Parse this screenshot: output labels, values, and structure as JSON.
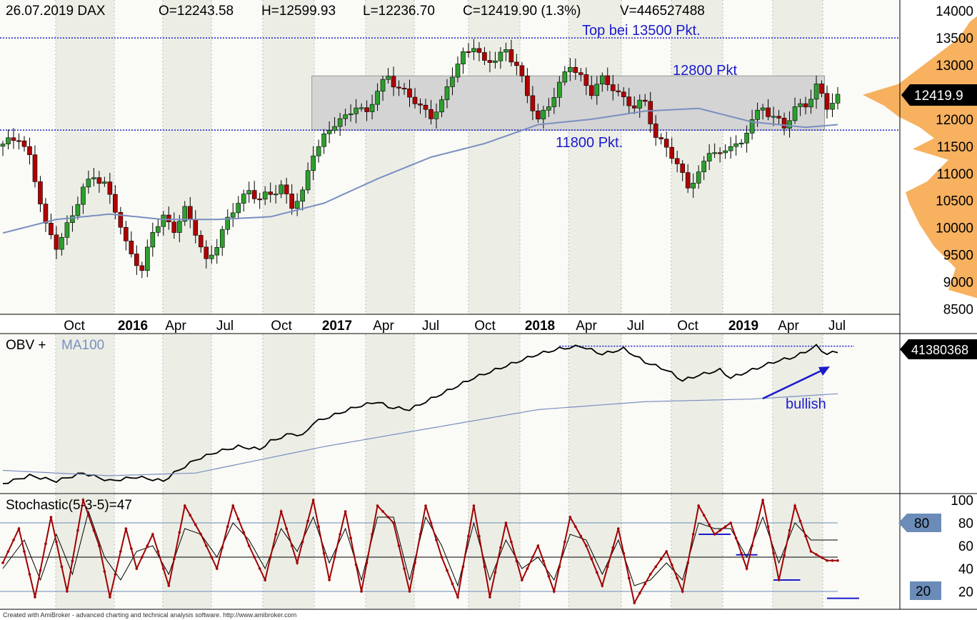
{
  "colors": {
    "up": "#2e9e2e",
    "down": "#b00000",
    "wick": "#000000",
    "ma": "#7a8fc0",
    "obv": "#000000",
    "stoch_k": "#a00000",
    "stoch_d": "#000000",
    "annot": "#1a1acc",
    "zone": "#d4d4d4",
    "profile": "#f6a94e",
    "band_alt": "#eceee6",
    "band": "#fafaf6"
  },
  "footer": {
    "credit": "Created with AmiBroker - advanced charting and technical analysis software. http://www.amibroker.com"
  },
  "chart_data": [
    {
      "type": "candlestick",
      "title": "26.07.2019 DAX",
      "ohlcv": {
        "o_label": "O=12243.58",
        "h_label": "H=12599.93",
        "l_label": "L=12236.70",
        "c_label": "C=12419.90 (1.3%)",
        "v_label": "V=446527488"
      },
      "last_value_label": "12419.9",
      "last_value": 12419.9,
      "ylim": [
        8400,
        14200
      ],
      "yticks": [
        8500,
        9000,
        9500,
        10000,
        10500,
        11000,
        11500,
        12000,
        12500,
        13000,
        13500,
        14000
      ],
      "x_tick_labels": [
        {
          "text": "Oct",
          "bold": false
        },
        {
          "text": "2016",
          "bold": true
        },
        {
          "text": "Apr",
          "bold": false
        },
        {
          "text": "Jul",
          "bold": false
        },
        {
          "text": "Oct",
          "bold": false
        },
        {
          "text": "2017",
          "bold": true
        },
        {
          "text": "Apr",
          "bold": false
        },
        {
          "text": "Jul",
          "bold": false
        },
        {
          "text": "Oct",
          "bold": false
        },
        {
          "text": "2018",
          "bold": true
        },
        {
          "text": "Apr",
          "bold": false
        },
        {
          "text": "Jul",
          "bold": false
        },
        {
          "text": "Oct",
          "bold": false
        },
        {
          "text": "2019",
          "bold": true
        },
        {
          "text": "Apr",
          "bold": false
        },
        {
          "text": "Jul",
          "bold": false
        }
      ],
      "annotations": [
        {
          "text": "Top bei 13500 Pkt.",
          "level": 13500
        },
        {
          "text": "12800 Pkt",
          "level": 12800
        },
        {
          "text": "11800 Pkt.",
          "level": 11800
        }
      ],
      "zone": {
        "low": 11800,
        "high": 12800
      },
      "ma_points": [
        [
          0,
          9900
        ],
        [
          10,
          10150
        ],
        [
          20,
          10250
        ],
        [
          30,
          10150
        ],
        [
          40,
          10150
        ],
        [
          50,
          10200
        ],
        [
          60,
          10450
        ],
        [
          70,
          10900
        ],
        [
          80,
          11300
        ],
        [
          90,
          11550
        ],
        [
          100,
          11900
        ],
        [
          110,
          12000
        ],
        [
          120,
          12150
        ],
        [
          130,
          12200
        ],
        [
          140,
          11950
        ],
        [
          150,
          11850
        ],
        [
          156,
          11900
        ]
      ],
      "close_points": [
        [
          0,
          11500
        ],
        [
          3,
          11700
        ],
        [
          5,
          11300
        ],
        [
          8,
          10000
        ],
        [
          10,
          9700
        ],
        [
          13,
          10200
        ],
        [
          15,
          10700
        ],
        [
          17,
          11000
        ],
        [
          19,
          10800
        ],
        [
          21,
          10300
        ],
        [
          23,
          9700
        ],
        [
          25,
          9400
        ],
        [
          26,
          9200
        ],
        [
          28,
          9900
        ],
        [
          30,
          10200
        ],
        [
          32,
          10000
        ],
        [
          34,
          10300
        ],
        [
          36,
          9900
        ],
        [
          38,
          9400
        ],
        [
          40,
          9700
        ],
        [
          42,
          10100
        ],
        [
          44,
          10500
        ],
        [
          46,
          10700
        ],
        [
          48,
          10500
        ],
        [
          50,
          10600
        ],
        [
          52,
          10800
        ],
        [
          54,
          10400
        ],
        [
          56,
          10600
        ],
        [
          58,
          11400
        ],
        [
          60,
          11700
        ],
        [
          62,
          11900
        ],
        [
          64,
          12000
        ],
        [
          66,
          12300
        ],
        [
          68,
          12100
        ],
        [
          70,
          12500
        ],
        [
          72,
          12800
        ],
        [
          74,
          12600
        ],
        [
          76,
          12400
        ],
        [
          78,
          12200
        ],
        [
          80,
          12100
        ],
        [
          82,
          12300
        ],
        [
          84,
          12800
        ],
        [
          86,
          13200
        ],
        [
          88,
          13400
        ],
        [
          90,
          13000
        ],
        [
          92,
          13100
        ],
        [
          94,
          13300
        ],
        [
          96,
          13000
        ],
        [
          98,
          12400
        ],
        [
          100,
          12000
        ],
        [
          102,
          12300
        ],
        [
          104,
          12600
        ],
        [
          106,
          13000
        ],
        [
          108,
          12800
        ],
        [
          110,
          12500
        ],
        [
          112,
          12700
        ],
        [
          114,
          12600
        ],
        [
          116,
          12400
        ],
        [
          118,
          12200
        ],
        [
          120,
          12300
        ],
        [
          122,
          11700
        ],
        [
          124,
          11500
        ],
        [
          126,
          11100
        ],
        [
          128,
          10800
        ],
        [
          130,
          11000
        ],
        [
          132,
          11400
        ],
        [
          134,
          11300
        ],
        [
          136,
          11600
        ],
        [
          138,
          11500
        ],
        [
          140,
          12000
        ],
        [
          142,
          12200
        ],
        [
          144,
          12100
        ],
        [
          146,
          11800
        ],
        [
          148,
          12200
        ],
        [
          150,
          12300
        ],
        [
          152,
          12600
        ],
        [
          154,
          12200
        ],
        [
          156,
          12420
        ]
      ]
    },
    {
      "type": "line",
      "title": "OBV + ",
      "ma_title": "MA100",
      "last_value_label": "41380368",
      "annotations": [
        {
          "text": "bullish"
        }
      ],
      "obv_points": [
        [
          0,
          0.68
        ],
        [
          5,
          0.62
        ],
        [
          10,
          0.66
        ],
        [
          15,
          0.6
        ],
        [
          20,
          0.66
        ],
        [
          25,
          0.63
        ],
        [
          30,
          0.66
        ],
        [
          32,
          0.6
        ],
        [
          36,
          0.5
        ],
        [
          40,
          0.44
        ],
        [
          44,
          0.4
        ],
        [
          48,
          0.42
        ],
        [
          50,
          0.36
        ],
        [
          54,
          0.3
        ],
        [
          56,
          0.32
        ],
        [
          58,
          0.22
        ],
        [
          62,
          0.16
        ],
        [
          66,
          0.1
        ],
        [
          70,
          0.06
        ],
        [
          72,
          0.1
        ],
        [
          76,
          0.12
        ],
        [
          80,
          0.04
        ],
        [
          84,
          -0.04
        ],
        [
          88,
          -0.12
        ],
        [
          92,
          -0.18
        ],
        [
          96,
          -0.24
        ],
        [
          100,
          -0.3
        ],
        [
          104,
          -0.34
        ],
        [
          108,
          -0.36
        ],
        [
          112,
          -0.3
        ],
        [
          116,
          -0.34
        ],
        [
          120,
          -0.24
        ],
        [
          124,
          -0.18
        ],
        [
          127,
          -0.1
        ],
        [
          130,
          -0.14
        ],
        [
          134,
          -0.18
        ],
        [
          136,
          -0.12
        ],
        [
          140,
          -0.18
        ],
        [
          144,
          -0.24
        ],
        [
          148,
          -0.28
        ],
        [
          152,
          -0.36
        ],
        [
          154,
          -0.3
        ],
        [
          156,
          -0.32
        ]
      ],
      "ma_points": [
        [
          0,
          0.58
        ],
        [
          20,
          0.62
        ],
        [
          36,
          0.6
        ],
        [
          60,
          0.4
        ],
        [
          80,
          0.26
        ],
        [
          100,
          0.12
        ],
        [
          120,
          0.06
        ],
        [
          140,
          0.04
        ],
        [
          156,
          0.0
        ]
      ],
      "ylim": [
        -0.45,
        0.75
      ]
    },
    {
      "type": "line",
      "title": "Stochastic(5-3-5)=47",
      "ylim": [
        0,
        100
      ],
      "yticks": [
        20,
        40,
        60,
        80,
        100
      ],
      "levels": [
        {
          "value": 80,
          "label": "80"
        },
        {
          "value": 20,
          "label": "20"
        }
      ],
      "k_points": [
        [
          0,
          45
        ],
        [
          3,
          75
        ],
        [
          6,
          15
        ],
        [
          9,
          85
        ],
        [
          12,
          20
        ],
        [
          15,
          100
        ],
        [
          18,
          60
        ],
        [
          20,
          15
        ],
        [
          23,
          75
        ],
        [
          25,
          40
        ],
        [
          28,
          70
        ],
        [
          31,
          25
        ],
        [
          34,
          95
        ],
        [
          37,
          70
        ],
        [
          40,
          40
        ],
        [
          43,
          95
        ],
        [
          46,
          60
        ],
        [
          49,
          30
        ],
        [
          52,
          90
        ],
        [
          55,
          45
        ],
        [
          58,
          100
        ],
        [
          61,
          30
        ],
        [
          64,
          90
        ],
        [
          67,
          20
        ],
        [
          70,
          95
        ],
        [
          73,
          80
        ],
        [
          76,
          20
        ],
        [
          79,
          95
        ],
        [
          82,
          50
        ],
        [
          85,
          15
        ],
        [
          88,
          95
        ],
        [
          91,
          15
        ],
        [
          94,
          80
        ],
        [
          97,
          30
        ],
        [
          100,
          60
        ],
        [
          103,
          20
        ],
        [
          106,
          85
        ],
        [
          109,
          60
        ],
        [
          112,
          25
        ],
        [
          115,
          75
        ],
        [
          118,
          10
        ],
        [
          121,
          35
        ],
        [
          124,
          55
        ],
        [
          127,
          20
        ],
        [
          130,
          95
        ],
        [
          133,
          70
        ],
        [
          136,
          80
        ],
        [
          139,
          40
        ],
        [
          142,
          100
        ],
        [
          145,
          30
        ],
        [
          148,
          95
        ],
        [
          151,
          55
        ],
        [
          154,
          47
        ]
      ],
      "d_points": [
        [
          0,
          40
        ],
        [
          4,
          65
        ],
        [
          7,
          30
        ],
        [
          10,
          70
        ],
        [
          13,
          35
        ],
        [
          16,
          90
        ],
        [
          19,
          50
        ],
        [
          22,
          30
        ],
        [
          25,
          55
        ],
        [
          28,
          60
        ],
        [
          31,
          35
        ],
        [
          34,
          75
        ],
        [
          37,
          70
        ],
        [
          40,
          50
        ],
        [
          43,
          80
        ],
        [
          46,
          65
        ],
        [
          49,
          40
        ],
        [
          52,
          75
        ],
        [
          55,
          55
        ],
        [
          58,
          85
        ],
        [
          61,
          45
        ],
        [
          64,
          75
        ],
        [
          67,
          30
        ],
        [
          70,
          85
        ],
        [
          73,
          85
        ],
        [
          76,
          30
        ],
        [
          79,
          85
        ],
        [
          82,
          60
        ],
        [
          85,
          25
        ],
        [
          88,
          80
        ],
        [
          91,
          30
        ],
        [
          94,
          65
        ],
        [
          97,
          40
        ],
        [
          100,
          50
        ],
        [
          103,
          30
        ],
        [
          106,
          70
        ],
        [
          109,
          65
        ],
        [
          112,
          35
        ],
        [
          115,
          65
        ],
        [
          118,
          25
        ],
        [
          121,
          30
        ],
        [
          124,
          45
        ],
        [
          127,
          30
        ],
        [
          130,
          80
        ],
        [
          133,
          75
        ],
        [
          136,
          75
        ],
        [
          139,
          50
        ],
        [
          142,
          85
        ],
        [
          145,
          45
        ],
        [
          148,
          80
        ],
        [
          151,
          65
        ],
        [
          154,
          65
        ]
      ]
    }
  ]
}
